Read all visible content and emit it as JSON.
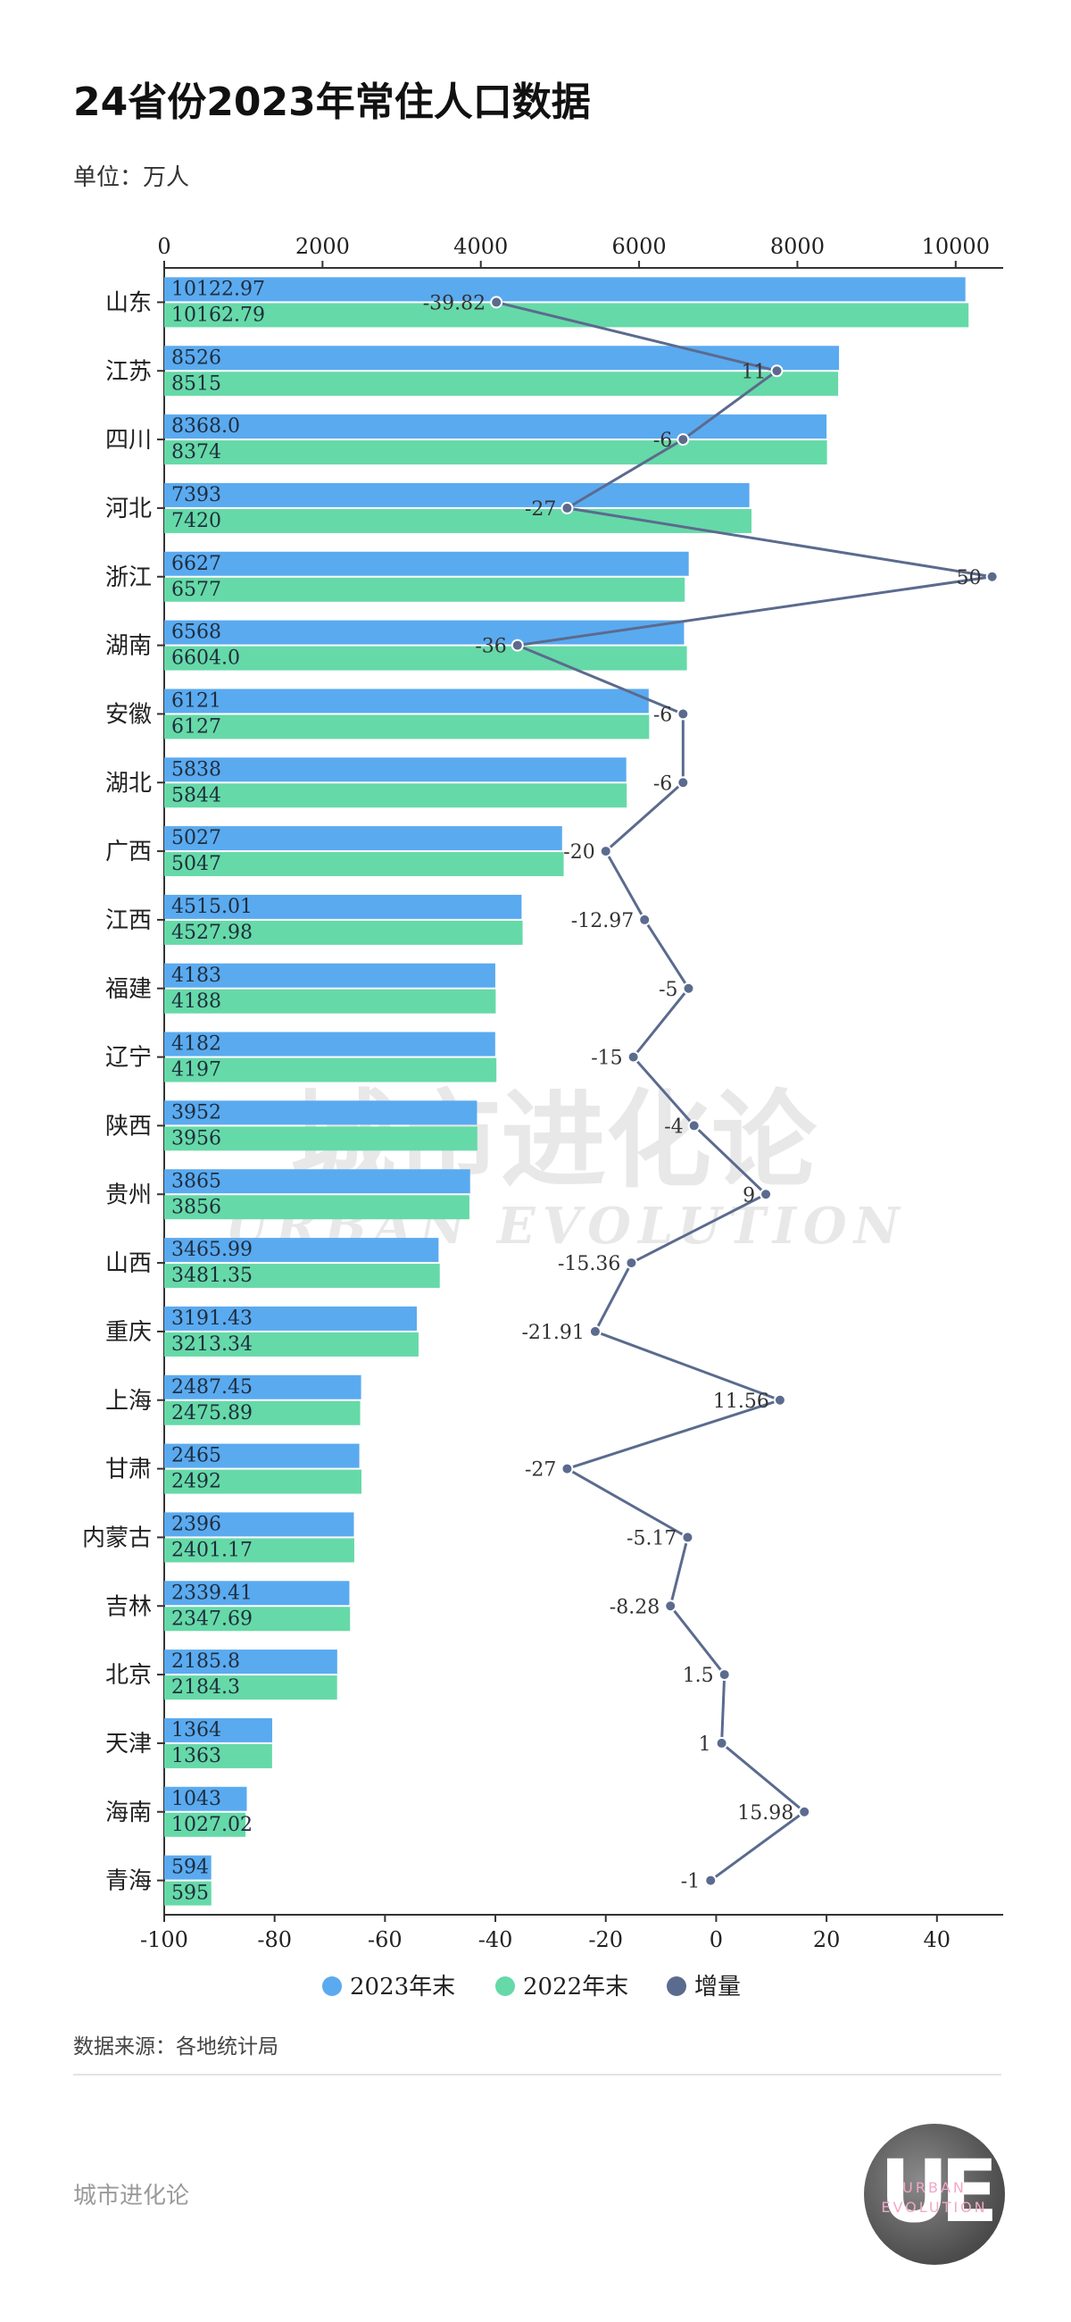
{
  "page": {
    "title": "24省份2023年常住人口数据",
    "unit": "单位：万人",
    "source": "数据来源：各地统计局",
    "brand": "城市进化论",
    "watermark_cn": "城市进化论",
    "watermark_en": "URBAN EVOLUTION",
    "logo_mark": "UE",
    "logo_text_1": "URBAN",
    "logo_text_2": "EVOLUTION"
  },
  "chart_data": {
    "type": "bar",
    "orientation": "horizontal",
    "categories": [
      "山东",
      "江苏",
      "四川",
      "河北",
      "浙江",
      "湖南",
      "安徽",
      "湖北",
      "广西",
      "江西",
      "福建",
      "辽宁",
      "陕西",
      "贵州",
      "山西",
      "重庆",
      "上海",
      "甘肃",
      "内蒙古",
      "吉林",
      "北京",
      "天津",
      "海南",
      "青海"
    ],
    "series": [
      {
        "name": "2023年末",
        "type": "bar",
        "color": "#5aaaf0",
        "values": [
          10122.97,
          8526,
          8368.0,
          7393,
          6627,
          6568,
          6121,
          5838,
          5027,
          4515.01,
          4183,
          4182,
          3952,
          3865,
          3465.99,
          3191.43,
          2487.45,
          2465,
          2396,
          2339.41,
          2185.8,
          1364,
          1043,
          594
        ],
        "labels": [
          "10122.97",
          "8526",
          "8368.0",
          "7393",
          "6627",
          "6568",
          "6121",
          "5838",
          "5027",
          "4515.01",
          "4183",
          "4182",
          "3952",
          "3865",
          "3465.99",
          "3191.43",
          "2487.45",
          "2465",
          "2396",
          "2339.41",
          "2185.8",
          "1364",
          "1043",
          "594"
        ]
      },
      {
        "name": "2022年末",
        "type": "bar",
        "color": "#66d9a8",
        "values": [
          10162.79,
          8515,
          8374,
          7420,
          6577,
          6604.0,
          6127,
          5844,
          5047,
          4527.98,
          4188,
          4197,
          3956,
          3856,
          3481.35,
          3213.34,
          2475.89,
          2492,
          2401.17,
          2347.69,
          2184.3,
          1363,
          1027.02,
          595
        ],
        "labels": [
          "10162.79",
          "8515",
          "8374",
          "7420",
          "6577",
          "6604.0",
          "6127",
          "5844",
          "5047",
          "4527.98",
          "4188",
          "4197",
          "3956",
          "3856",
          "3481.35",
          "3213.34",
          "2475.89",
          "2492",
          "2401.17",
          "2347.69",
          "2184.3",
          "1363",
          "1027.02",
          "595"
        ]
      },
      {
        "name": "增量",
        "type": "line",
        "color": "#5b6b8e",
        "values": [
          -39.82,
          11,
          -6,
          -27,
          50,
          -36,
          -6,
          -6,
          -20,
          -12.97,
          -5,
          -15,
          -4,
          9,
          -15.36,
          -21.91,
          11.56,
          -27,
          -5.17,
          -8.28,
          1.5,
          1,
          15.98,
          -1
        ],
        "labels": [
          "-39.82",
          "11",
          "-6",
          "-27",
          "50",
          "-36",
          "-6",
          "-6",
          "-20",
          "-12.97",
          "-5",
          "-15",
          "-4",
          "9",
          "-15.36",
          "-21.91",
          "11.56",
          "-27",
          "-5.17",
          "-8.28",
          "1.5",
          "1",
          "15.98",
          "-1"
        ]
      }
    ],
    "x_top": {
      "range": [
        0,
        10600
      ],
      "ticks": [
        0,
        2000,
        4000,
        6000,
        8000,
        10000
      ],
      "tick_labels": [
        "0",
        "2000",
        "4000",
        "6000",
        "8000",
        "10000"
      ]
    },
    "x_bottom": {
      "range": [
        -100,
        52
      ],
      "ticks": [
        -100,
        -80,
        -60,
        -40,
        -20,
        0,
        20,
        40
      ],
      "tick_labels": [
        "-100",
        "-80",
        "-60",
        "-40",
        "-20",
        "0",
        "20",
        "40"
      ]
    },
    "legend": {
      "position": "bottom-center",
      "items": [
        "2023年末",
        "2022年末",
        "增量"
      ]
    },
    "grid": false
  }
}
